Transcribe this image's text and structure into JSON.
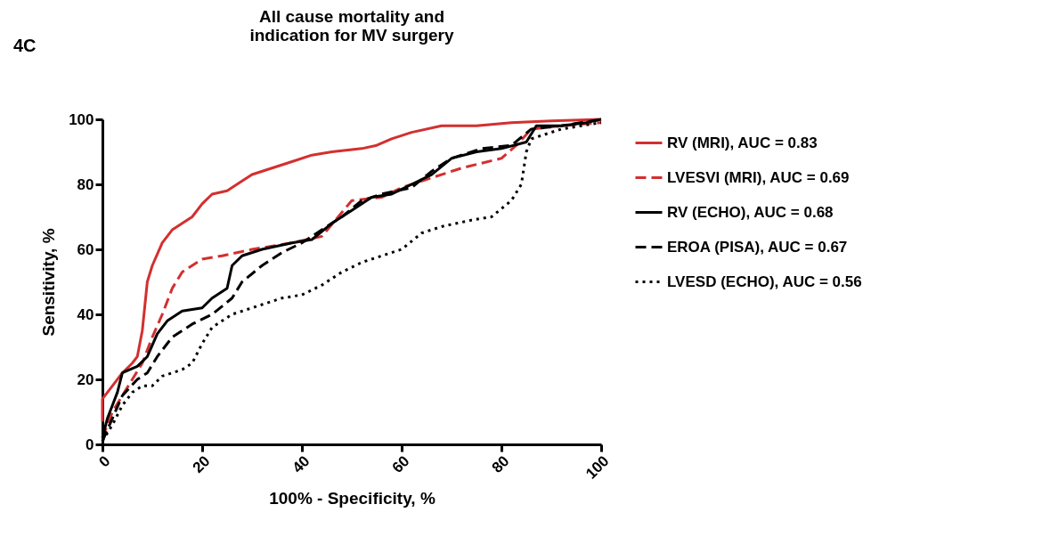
{
  "chart_data": {
    "type": "line",
    "title": "All cause mortality and\nindication for MV surgery",
    "xlabel": "100% - Specificity, %",
    "ylabel": "Sensitivity, %",
    "annotations": [
      "4C"
    ],
    "xlim": [
      0,
      100
    ],
    "ylim": [
      0,
      100
    ],
    "xticks": [
      0,
      20,
      40,
      60,
      80,
      100
    ],
    "yticks": [
      0,
      20,
      40,
      60,
      80,
      100
    ],
    "grid": false,
    "legend": "right",
    "marker": "none",
    "series": [
      {
        "name": "RV (MRI), AUC = 0.83",
        "color": "#d32f2f",
        "line_style": "solid",
        "x": [
          0,
          0,
          2,
          4,
          6,
          7,
          8,
          9,
          10,
          12,
          14,
          16,
          18,
          20,
          22,
          25,
          28,
          30,
          34,
          38,
          42,
          46,
          52,
          55,
          58,
          62,
          68,
          75,
          82,
          90,
          100
        ],
        "values": [
          7,
          14,
          18,
          22,
          25,
          27,
          35,
          50,
          55,
          62,
          66,
          68,
          70,
          74,
          77,
          78,
          81,
          83,
          85,
          87,
          89,
          90,
          91,
          92,
          94,
          96,
          98,
          98,
          99,
          99.5,
          100
        ]
      },
      {
        "name": "LVESVI (MRI), AUC = 0.69",
        "color": "#d32f2f",
        "line_style": "dashed",
        "x": [
          0,
          2,
          4,
          6,
          8,
          10,
          12,
          14,
          16,
          20,
          24,
          30,
          38,
          44,
          50,
          56,
          60,
          66,
          72,
          80,
          83,
          86,
          92,
          100
        ],
        "values": [
          2,
          10,
          15,
          20,
          25,
          33,
          40,
          48,
          53,
          57,
          58,
          60,
          62,
          64,
          75,
          76,
          79,
          82,
          85,
          88,
          92,
          97,
          98,
          99
        ]
      },
      {
        "name": "RV (ECHO), AUC = 0.68",
        "color": "#000000",
        "line_style": "solid",
        "x": [
          0,
          1,
          2,
          3,
          4,
          7,
          9,
          11,
          13,
          16,
          20,
          22,
          25,
          26,
          28,
          32,
          38,
          42,
          46,
          50,
          54,
          58,
          62,
          66,
          70,
          75,
          80,
          85,
          87,
          92,
          97,
          100
        ],
        "values": [
          2,
          8,
          12,
          16,
          22,
          24,
          27,
          34,
          38,
          41,
          42,
          45,
          48,
          55,
          58,
          60,
          62,
          63,
          68,
          72,
          76,
          77,
          80,
          83,
          88,
          90,
          91,
          93,
          98,
          98,
          99,
          100
        ]
      },
      {
        "name": "EROA (PISA), AUC = 0.67",
        "color": "#000000",
        "line_style": "dashed",
        "x": [
          0,
          2,
          4,
          7,
          9,
          11,
          14,
          18,
          22,
          26,
          28,
          32,
          36,
          40,
          44,
          48,
          52,
          56,
          62,
          66,
          70,
          76,
          82,
          86,
          92,
          100
        ],
        "values": [
          1,
          8,
          15,
          20,
          22,
          27,
          33,
          37,
          40,
          45,
          50,
          55,
          59,
          62,
          66,
          70,
          75,
          77,
          79,
          84,
          88,
          91,
          92,
          97,
          98,
          100
        ]
      },
      {
        "name": "LVESD (ECHO),  AUC = 0.56",
        "color": "#000000",
        "line_style": "dotted",
        "x": [
          0,
          2,
          4,
          6,
          8,
          10,
          12,
          16,
          18,
          20,
          22,
          26,
          32,
          36,
          40,
          44,
          48,
          52,
          56,
          60,
          64,
          68,
          74,
          78,
          82,
          84,
          85,
          86,
          92,
          100
        ],
        "values": [
          1,
          6,
          12,
          16,
          18,
          18,
          21,
          23,
          25,
          31,
          36,
          40,
          43,
          45,
          46,
          49,
          53,
          56,
          58,
          60,
          65,
          67,
          69,
          70,
          75,
          80,
          90,
          94,
          97,
          99
        ]
      }
    ]
  }
}
